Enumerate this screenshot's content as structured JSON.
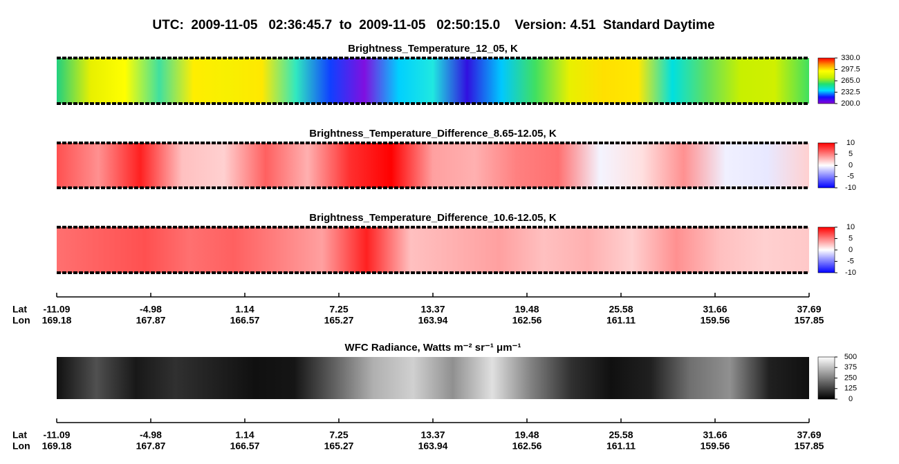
{
  "title": "UTC:  2009-11-05   02:36:45.7  to  2009-11-05   02:50:15.0    Version: 4.51  Standard Daytime",
  "panels": [
    {
      "title": "Brightness_Temperature_12_05, K",
      "zlim": [
        200,
        330
      ],
      "zticks": [
        {
          "value": 200,
          "label": "200.0"
        },
        {
          "value": 232.5,
          "label": "232.5"
        },
        {
          "value": 265,
          "label": "265.0"
        },
        {
          "value": 297.5,
          "label": "297.5"
        },
        {
          "value": 330,
          "label": "330.0"
        }
      ],
      "colormap": [
        "#8a00d8",
        "#1010ff",
        "#00e0ff",
        "#20e070",
        "#c8f000",
        "#ffff00",
        "#ff9000",
        "#ff0000"
      ]
    },
    {
      "title": "Brightness_Temperature_Difference_8.65-12.05, K",
      "zlim": [
        -10,
        10
      ],
      "zticks": [
        -10,
        -5,
        0,
        5,
        10
      ],
      "colormap": [
        "#0000ff",
        "#ffffff",
        "#ff0000"
      ]
    },
    {
      "title": "Brightness_Temperature_Difference_10.6-12.05, K",
      "zlim": [
        -10,
        10
      ],
      "zticks": [
        -10,
        -5,
        0,
        5,
        10
      ],
      "colormap": [
        "#0000ff",
        "#ffffff",
        "#ff0000"
      ]
    },
    {
      "title": "WFC Radiance, Watts m⁻² sr⁻¹ μm⁻¹",
      "zlim": [
        0,
        500
      ],
      "zticks": [
        0,
        125,
        250,
        375,
        500
      ],
      "colormap": [
        "#000000",
        "#ffffff"
      ]
    }
  ],
  "axes": [
    {
      "lat_label": "Lat",
      "lon_label": "Lon",
      "lat": [
        -11.09,
        -4.98,
        1.14,
        7.25,
        13.37,
        19.48,
        25.58,
        31.66,
        37.69
      ],
      "lon": [
        169.18,
        167.87,
        166.57,
        165.27,
        163.94,
        162.56,
        161.11,
        159.56,
        157.85
      ]
    },
    {
      "lat_label": "Lat",
      "lon_label": "Lon",
      "lat": [
        -11.09,
        -4.98,
        1.14,
        7.25,
        13.37,
        19.48,
        25.58,
        31.66,
        37.69
      ],
      "lon": [
        169.18,
        167.87,
        166.57,
        165.27,
        163.94,
        162.56,
        161.11,
        159.56,
        157.85
      ]
    }
  ]
}
